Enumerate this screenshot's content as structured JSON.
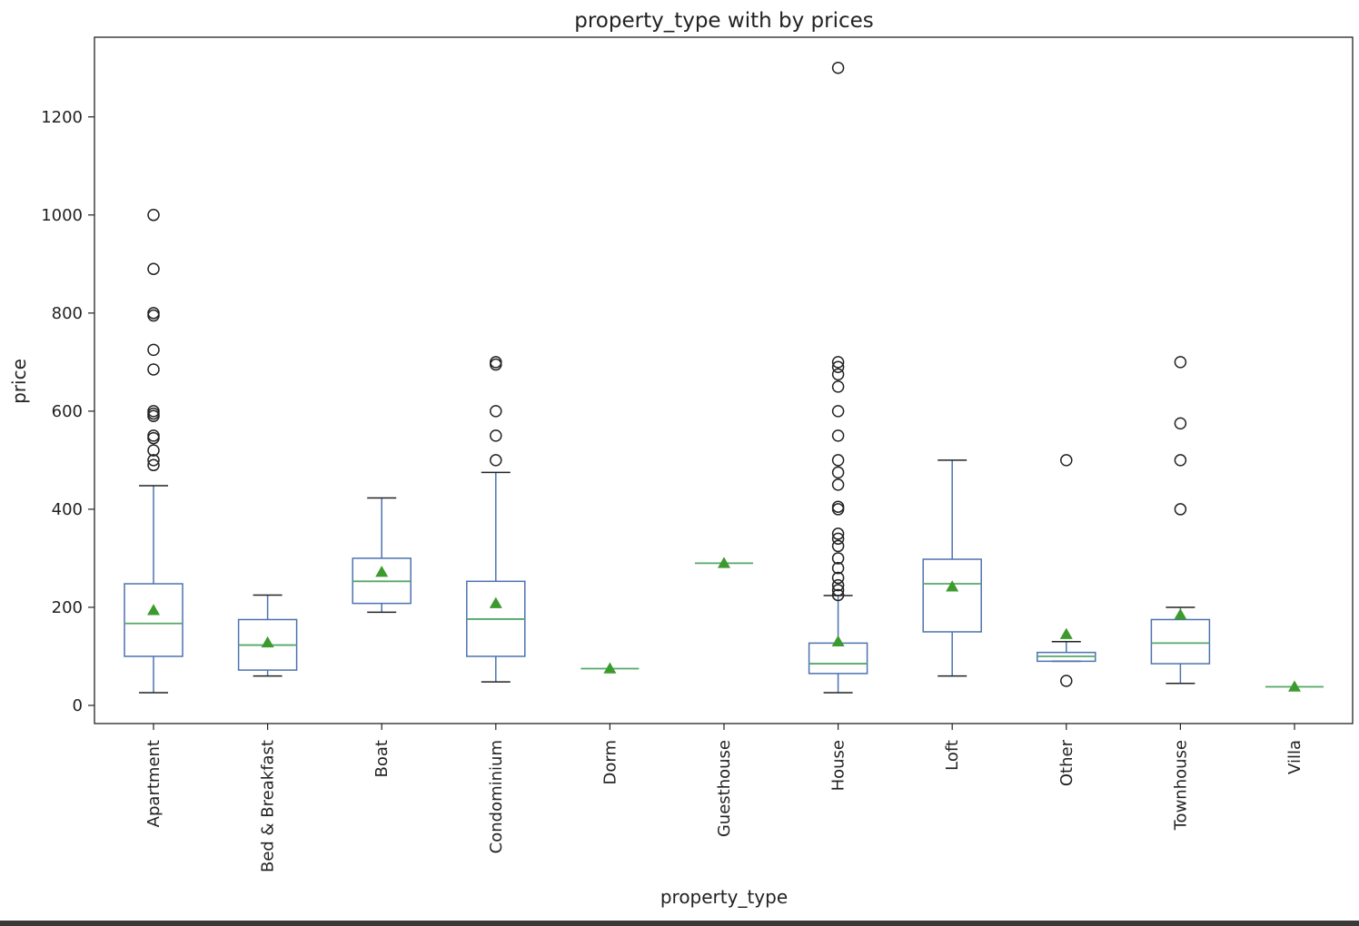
{
  "chart_data": {
    "type": "box",
    "title": "property_type with by prices",
    "xlabel": "property_type",
    "ylabel": "price",
    "ylim": [
      -35,
      1370
    ],
    "yticks": [
      0,
      200,
      400,
      600,
      800,
      1000,
      1200
    ],
    "grid": false,
    "legend": "none",
    "colors": {
      "box": "#4c72b0",
      "median": "#55a868",
      "mean_marker": "#3d9a2e",
      "whisker_cap": "#222222",
      "outlier": "#222222"
    },
    "categories": [
      "Apartment",
      "Bed & Breakfast",
      "Boat",
      "Condominium",
      "Dorm",
      "Guesthouse",
      "House",
      "Loft",
      "Other",
      "Townhouse",
      "Villa"
    ],
    "boxes": [
      {
        "q1": 100,
        "median": 167,
        "q3": 248,
        "whisker_low": 26,
        "whisker_high": 448,
        "mean": 194,
        "outliers": [
          490,
          500,
          520,
          545,
          550,
          590,
          595,
          600,
          685,
          725,
          795,
          800,
          890,
          1000
        ]
      },
      {
        "q1": 72,
        "median": 123,
        "q3": 175,
        "whisker_low": 60,
        "whisker_high": 225,
        "mean": 128,
        "outliers": []
      },
      {
        "q1": 208,
        "median": 253,
        "q3": 300,
        "whisker_low": 190,
        "whisker_high": 423,
        "mean": 272,
        "outliers": []
      },
      {
        "q1": 100,
        "median": 176,
        "q3": 253,
        "whisker_low": 48,
        "whisker_high": 475,
        "mean": 208,
        "outliers": [
          500,
          550,
          600,
          695,
          700
        ]
      },
      {
        "q1": 75,
        "median": 75,
        "q3": 75,
        "whisker_low": 75,
        "whisker_high": 75,
        "mean": 75,
        "outliers": []
      },
      {
        "q1": 290,
        "median": 290,
        "q3": 290,
        "whisker_low": 290,
        "whisker_high": 290,
        "mean": 290,
        "outliers": []
      },
      {
        "q1": 65,
        "median": 85,
        "q3": 127,
        "whisker_low": 26,
        "whisker_high": 224,
        "mean": 130,
        "outliers": [
          225,
          235,
          245,
          260,
          280,
          300,
          325,
          340,
          350,
          400,
          405,
          450,
          475,
          500,
          550,
          600,
          650,
          675,
          690,
          700,
          1300
        ]
      },
      {
        "q1": 150,
        "median": 248,
        "q3": 298,
        "whisker_low": 60,
        "whisker_high": 500,
        "mean": 242,
        "outliers": []
      },
      {
        "q1": 90,
        "median": 100,
        "q3": 108,
        "whisker_low": 90,
        "whisker_high": 130,
        "mean": 145,
        "outliers": [
          50,
          500
        ]
      },
      {
        "q1": 85,
        "median": 127,
        "q3": 175,
        "whisker_low": 45,
        "whisker_high": 200,
        "mean": 185,
        "outliers": [
          400,
          500,
          575,
          700
        ]
      },
      {
        "q1": 38,
        "median": 38,
        "q3": 38,
        "whisker_low": 38,
        "whisker_high": 38,
        "mean": 38,
        "outliers": []
      }
    ]
  }
}
